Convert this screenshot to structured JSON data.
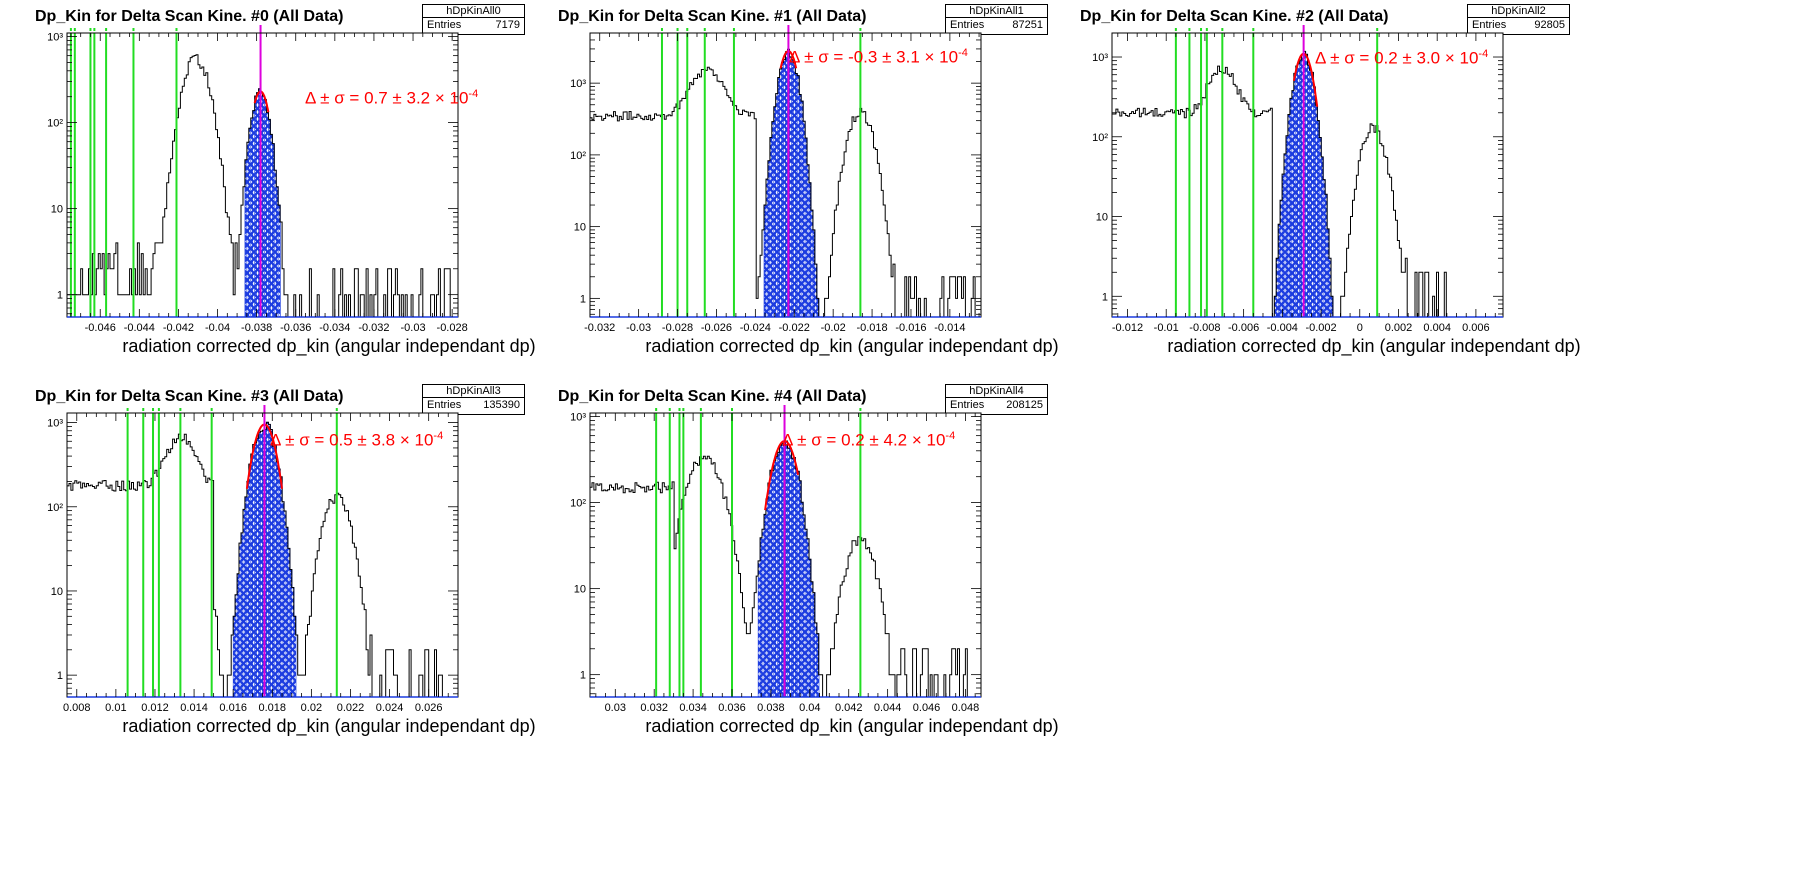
{
  "chart_data": [
    {
      "type": "histogram",
      "title": "Dp_Kin for Delta Scan Kine. #0 (All Data)",
      "stats": {
        "name": "hDpKinAll0",
        "entries_label": "Entries",
        "entries": "7179"
      },
      "xlabel": "radiation corrected dp_kin (angular independant dp)",
      "xlim": [
        -0.0477,
        -0.0277
      ],
      "ylim": [
        0.55,
        1100
      ],
      "log_y": true,
      "xticks": [
        "-0.046",
        "-0.044",
        "-0.042",
        "-0.04",
        "-0.038",
        "-0.036",
        "-0.034",
        "-0.032",
        "-0.03",
        "-0.028"
      ],
      "xtick_values": [
        -0.046,
        -0.044,
        -0.042,
        -0.04,
        -0.038,
        -0.036,
        -0.034,
        -0.032,
        -0.03,
        -0.028
      ],
      "yticks": [
        "1",
        "10",
        "10²",
        "10³"
      ],
      "ytick_values": [
        1,
        10,
        100,
        1000
      ],
      "peaks": [
        {
          "center": -0.0411,
          "height": 550,
          "sigma": 0.00055
        },
        {
          "center": -0.0378,
          "height": 230,
          "sigma": 0.00038
        }
      ],
      "baseline": 1.2,
      "noise_from": -0.0465,
      "noise_to": -0.028,
      "selected_range": [
        -0.0386,
        -0.0368
      ],
      "vertical_lines": [
        -0.0475,
        -0.0473,
        -0.0465,
        -0.0463,
        -0.0457,
        -0.0443,
        -0.0421
      ],
      "mean_line": -0.0378,
      "fit_range": [
        -0.0381,
        -0.0374
      ],
      "annotation": {
        "delta": "0.7",
        "sigma": "3.2",
        "exponent": "-4"
      }
    },
    {
      "type": "histogram",
      "title": "Dp_Kin for Delta Scan Kine. #1 (All Data)",
      "stats": {
        "name": "hDpKinAll1",
        "entries_label": "Entries",
        "entries": "87251"
      },
      "xlabel": "radiation corrected dp_kin (angular independant dp)",
      "xlim": [
        -0.0325,
        -0.0124
      ],
      "ylim": [
        0.55,
        5000
      ],
      "log_y": true,
      "xticks": [
        "-0.032",
        "-0.03",
        "-0.028",
        "-0.026",
        "-0.024",
        "-0.022",
        "-0.02",
        "-0.018",
        "-0.016",
        "-0.014"
      ],
      "xtick_values": [
        -0.032,
        -0.03,
        -0.028,
        -0.026,
        -0.024,
        -0.022,
        -0.02,
        -0.018,
        -0.016,
        -0.014
      ],
      "yticks": [
        "1",
        "10",
        "10²",
        "10³"
      ],
      "ytick_values": [
        1,
        10,
        100,
        1000
      ],
      "peaks": [
        {
          "center": -0.0265,
          "height": 1200,
          "sigma": 0.0007
        },
        {
          "center": -0.0223,
          "height": 2800,
          "sigma": 0.00038
        },
        {
          "center": -0.0186,
          "height": 400,
          "sigma": 0.0005
        }
      ],
      "baseline": 350,
      "baseline_until": -0.024,
      "noise_from": -0.0175,
      "noise_to": -0.0127,
      "selected_range": [
        -0.0236,
        -0.0205
      ],
      "vertical_lines": [
        -0.0288,
        -0.028,
        -0.0275,
        -0.0266,
        -0.0251,
        -0.0186
      ],
      "mean_line": -0.0223,
      "fit_range": [
        -0.0227,
        -0.0219
      ],
      "annotation": {
        "delta": "-0.3",
        "sigma": "3.1",
        "exponent": "-4"
      }
    },
    {
      "type": "histogram",
      "title": "Dp_Kin for Delta Scan Kine. #2 (All Data)",
      "stats": {
        "name": "hDpKinAll2",
        "entries_label": "Entries",
        "entries": "92805"
      },
      "xlabel": "radiation corrected dp_kin (angular independant dp)",
      "xlim": [
        -0.0128,
        0.0074
      ],
      "ylim": [
        0.55,
        2000
      ],
      "log_y": true,
      "xticks": [
        "-0.012",
        "-0.01",
        "-0.008",
        "-0.006",
        "-0.004",
        "-0.002",
        "0",
        "0.002",
        "0.004",
        "0.006"
      ],
      "xtick_values": [
        -0.012,
        -0.01,
        -0.008,
        -0.006,
        -0.004,
        -0.002,
        0,
        0.002,
        0.004,
        0.006
      ],
      "yticks": [
        "1",
        "10",
        "10²",
        "10³"
      ],
      "ytick_values": [
        1,
        10,
        100,
        1000
      ],
      "peaks": [
        {
          "center": -0.0071,
          "height": 500,
          "sigma": 0.0006
        },
        {
          "center": -0.0029,
          "height": 1100,
          "sigma": 0.0004
        },
        {
          "center": 0.0007,
          "height": 130,
          "sigma": 0.0005
        }
      ],
      "baseline": 200,
      "baseline_until": -0.0045,
      "noise_from": 0.0015,
      "noise_to": 0.0055,
      "selected_range": [
        -0.0046,
        -0.001
      ],
      "vertical_lines": [
        -0.0095,
        -0.0088,
        -0.0082,
        -0.0079,
        -0.0071,
        -0.0055,
        0.0009
      ],
      "mean_line": -0.0029,
      "fit_range": [
        -0.0034,
        -0.0022
      ],
      "annotation": {
        "delta": "0.2",
        "sigma": "3.0",
        "exponent": "-4"
      }
    },
    {
      "type": "histogram",
      "title": "Dp_Kin for Delta Scan Kine. #3 (All Data)",
      "stats": {
        "name": "hDpKinAll3",
        "entries_label": "Entries",
        "entries": "135390"
      },
      "xlabel": "radiation corrected dp_kin (angular independant dp)",
      "xlim": [
        0.0075,
        0.0275
      ],
      "ylim": [
        0.55,
        1300
      ],
      "log_y": true,
      "xticks": [
        "0.008",
        "0.01",
        "0.012",
        "0.014",
        "0.016",
        "0.018",
        "0.02",
        "0.022",
        "0.024",
        "0.026"
      ],
      "xtick_values": [
        0.008,
        0.01,
        0.012,
        0.014,
        0.016,
        0.018,
        0.02,
        0.022,
        0.024,
        0.026
      ],
      "yticks": [
        "1",
        "10",
        "10²",
        "10³"
      ],
      "ytick_values": [
        1,
        10,
        100,
        1000
      ],
      "peaks": [
        {
          "center": 0.0133,
          "height": 500,
          "sigma": 0.0006
        },
        {
          "center": 0.0176,
          "height": 950,
          "sigma": 0.00048
        },
        {
          "center": 0.0213,
          "height": 130,
          "sigma": 0.00055
        }
      ],
      "baseline": 180,
      "baseline_until": 0.015,
      "noise_from": 0.0225,
      "noise_to": 0.0268,
      "selected_range": [
        0.016,
        0.0192
      ],
      "vertical_lines": [
        0.0106,
        0.0114,
        0.0119,
        0.0122,
        0.0133,
        0.0149,
        0.0213
      ],
      "mean_line": 0.0176,
      "fit_range": [
        0.0167,
        0.0185
      ],
      "annotation": {
        "delta": "0.5",
        "sigma": "3.8",
        "exponent": "-4"
      }
    },
    {
      "type": "histogram",
      "title": "Dp_Kin for Delta Scan Kine. #4 (All Data)",
      "stats": {
        "name": "hDpKinAll4",
        "entries_label": "Entries",
        "entries": "208125"
      },
      "xlabel": "radiation corrected dp_kin (angular independant dp)",
      "xlim": [
        0.0287,
        0.0488
      ],
      "ylim": [
        0.55,
        1100
      ],
      "log_y": true,
      "xticks": [
        "0.03",
        "0.032",
        "0.034",
        "0.036",
        "0.038",
        "0.04",
        "0.042",
        "0.044",
        "0.046",
        "0.048"
      ],
      "xtick_values": [
        0.03,
        0.032,
        0.034,
        0.036,
        0.038,
        0.04,
        0.042,
        0.044,
        0.046,
        0.048
      ],
      "yticks": [
        "1",
        "10",
        "10²",
        "10³"
      ],
      "ytick_values": [
        1,
        10,
        100,
        1000
      ],
      "peaks": [
        {
          "center": 0.0346,
          "height": 350,
          "sigma": 0.0007
        },
        {
          "center": 0.0387,
          "height": 520,
          "sigma": 0.00052
        },
        {
          "center": 0.0426,
          "height": 38,
          "sigma": 0.0006
        }
      ],
      "baseline": 150,
      "baseline_until": 0.033,
      "noise_from": 0.044,
      "noise_to": 0.0482,
      "selected_range": [
        0.0373,
        0.0405
      ],
      "vertical_lines": [
        0.0321,
        0.0328,
        0.0333,
        0.0335,
        0.0344,
        0.036,
        0.0426
      ],
      "mean_line": 0.0387,
      "fit_range": [
        0.0377,
        0.0394
      ],
      "annotation": {
        "delta": "0.2",
        "sigma": "4.2",
        "exponent": "-4"
      }
    }
  ]
}
